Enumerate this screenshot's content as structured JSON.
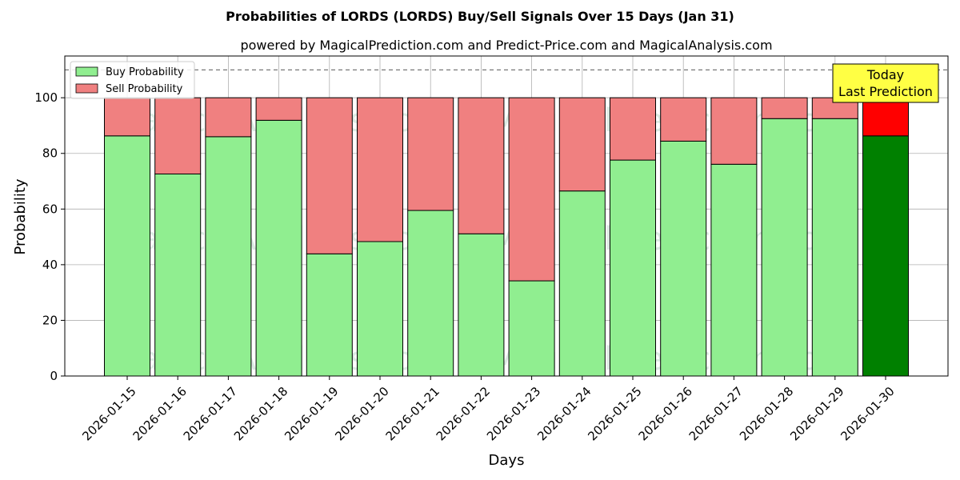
{
  "chart_data": {
    "type": "bar",
    "stacked": true,
    "title": "Probabilities of LORDS (LORDS) Buy/Sell Signals Over 15 Days (Jan 31)",
    "subtitle": "powered by MagicalPrediction.com and Predict-Price.com and MagicalAnalysis.com",
    "xlabel": "Days",
    "ylabel": "Probability",
    "ylim": [
      0,
      115
    ],
    "yticks": [
      0,
      20,
      40,
      60,
      80,
      100
    ],
    "grid": true,
    "legend_position": "top-left",
    "reference_line": 110,
    "categories": [
      "2026-01-15",
      "2026-01-16",
      "2026-01-17",
      "2026-01-18",
      "2026-01-19",
      "2026-01-20",
      "2026-01-21",
      "2026-01-22",
      "2026-01-23",
      "2026-01-24",
      "2026-01-25",
      "2026-01-26",
      "2026-01-27",
      "2026-01-28",
      "2026-01-29",
      "2026-01-30"
    ],
    "series": [
      {
        "name": "Buy Probability",
        "color": "#90ee90",
        "highlight_color": "#008000",
        "values": [
          86.3,
          72.6,
          86.0,
          91.9,
          43.9,
          48.3,
          59.5,
          51.1,
          34.2,
          66.5,
          77.6,
          84.4,
          76.1,
          92.5,
          92.5,
          86.3
        ]
      },
      {
        "name": "Sell Probability",
        "color": "#f08080",
        "highlight_color": "#ff0000",
        "values": [
          13.7,
          27.4,
          14.0,
          8.1,
          56.1,
          51.7,
          40.5,
          48.9,
          65.8,
          33.5,
          22.4,
          15.6,
          23.9,
          7.5,
          7.5,
          13.7
        ]
      }
    ],
    "highlight_index": 15,
    "annotation": {
      "line1": "Today",
      "line2": "Last Prediction",
      "color": "#ffff44"
    },
    "watermarks": [
      "MagicalAnalysis.com",
      "MagicalPrediction.com"
    ]
  }
}
